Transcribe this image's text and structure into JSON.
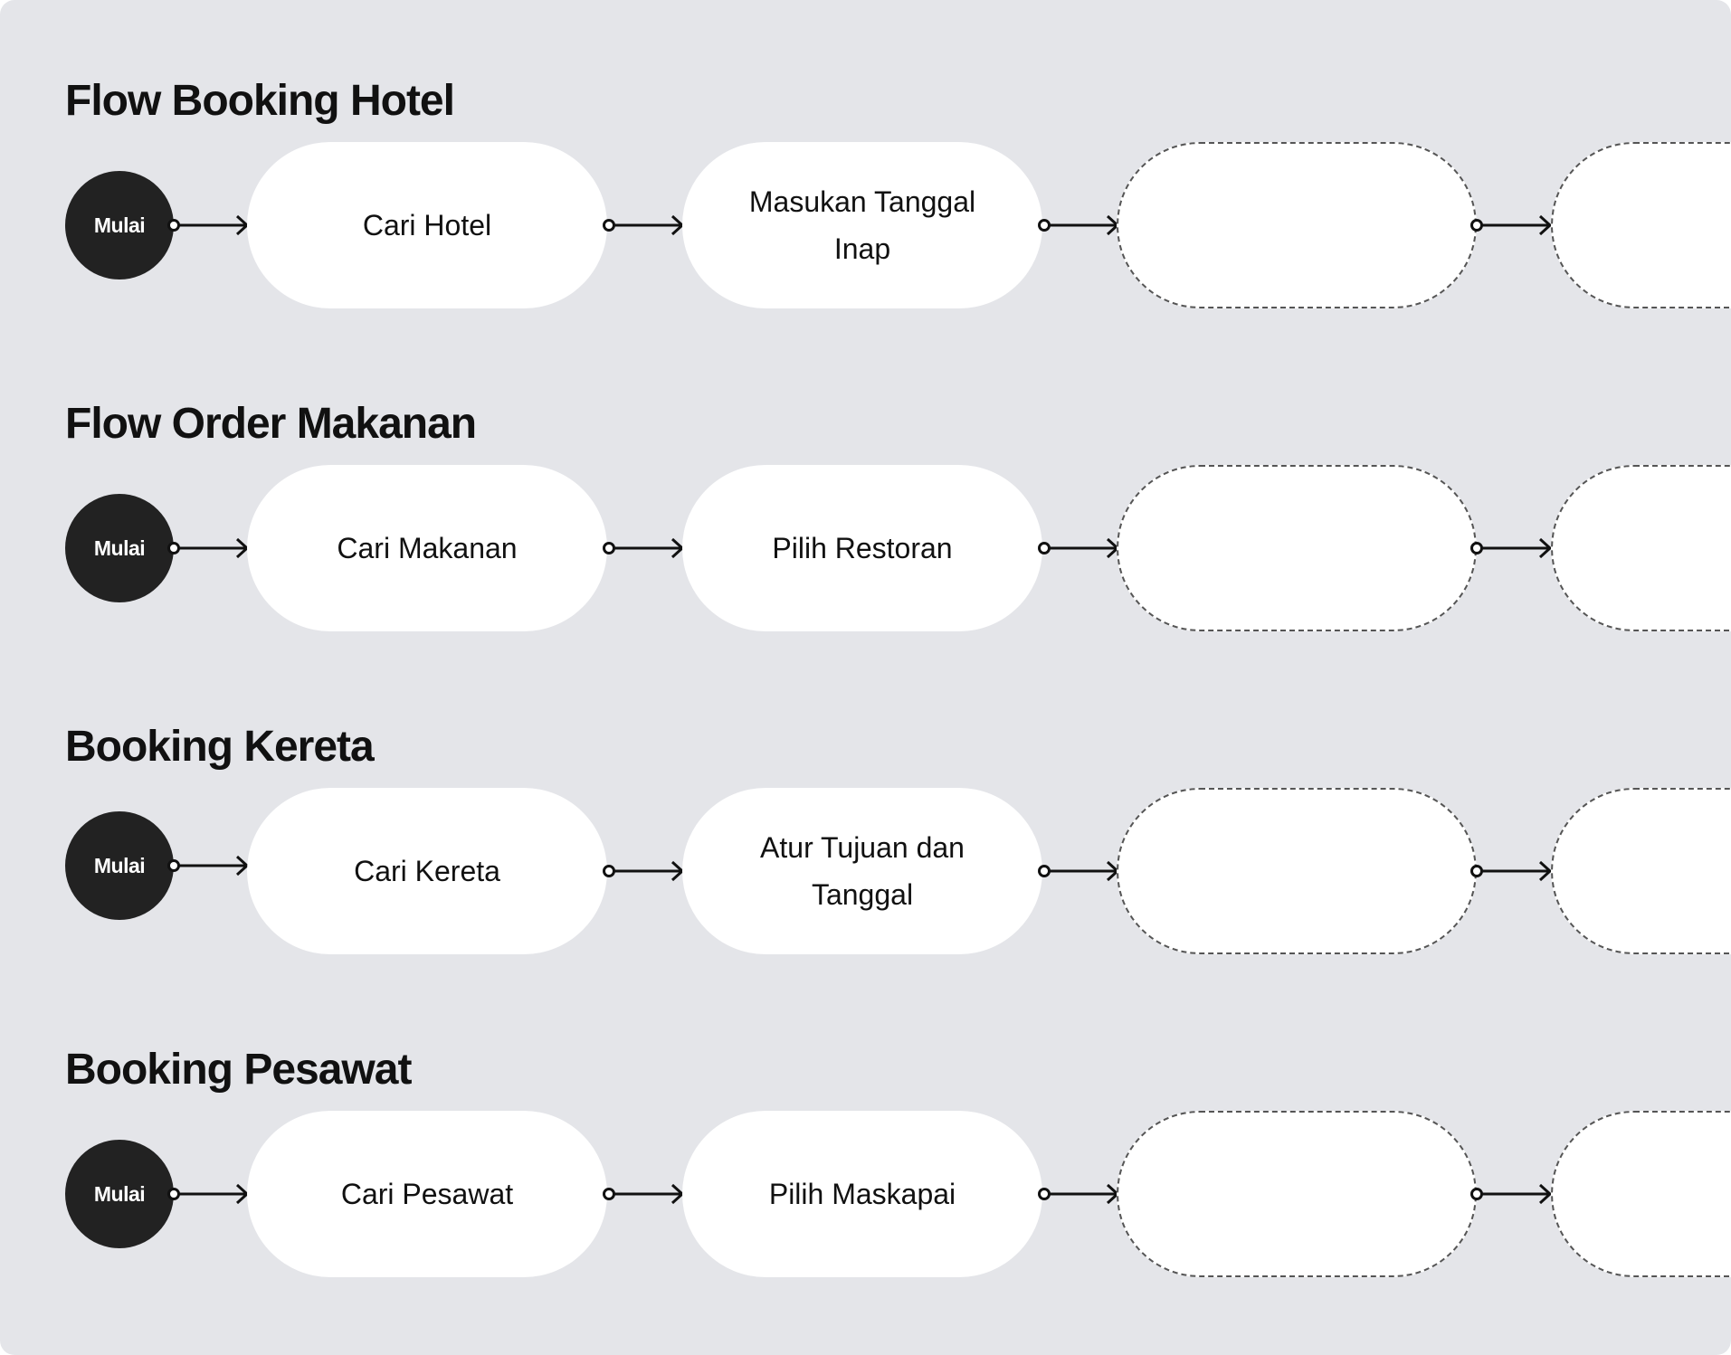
{
  "flows": [
    {
      "title": "Flow Booking Hotel",
      "start_label": "Mulai",
      "steps": [
        "Cari Hotel",
        "Masukan Tanggal Inap",
        "",
        ""
      ]
    },
    {
      "title": "Flow Order Makanan",
      "start_label": "Mulai",
      "steps": [
        "Cari Makanan",
        "Pilih Restoran",
        "",
        ""
      ]
    },
    {
      "title": "Booking Kereta",
      "start_label": "Mulai",
      "steps": [
        "Cari Kereta",
        "Atur Tujuan dan Tanggal",
        "",
        ""
      ]
    },
    {
      "title": "Booking Pesawat",
      "start_label": "Mulai",
      "steps": [
        "Cari Pesawat",
        "Pilih Maskapai",
        "",
        ""
      ]
    }
  ],
  "colors": {
    "background": "#e4e5e9",
    "start_node": "#222222",
    "step_fill": "#ffffff",
    "arrow": "#111111",
    "placeholder_border": "#555555"
  }
}
